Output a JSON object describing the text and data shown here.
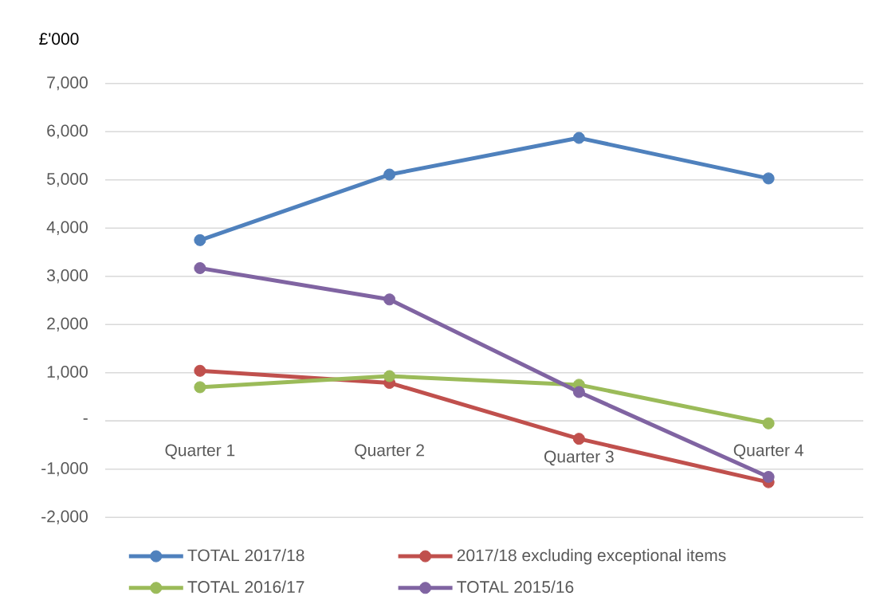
{
  "chart_data": {
    "type": "line",
    "ylabel": "£'000",
    "categories": [
      "Quarter 1",
      "Quarter 2",
      "Quarter 3",
      "Quarter 4"
    ],
    "series": [
      {
        "name": "TOTAL 2017/18",
        "color": "#4f81bd",
        "values": [
          3750,
          5110,
          5870,
          5030
        ]
      },
      {
        "name": "2017/18 excluding exceptional items",
        "color": "#c0504d",
        "values": [
          1040,
          790,
          -370,
          -1270
        ]
      },
      {
        "name": "TOTAL 2016/17",
        "color": "#9bbb59",
        "values": [
          700,
          930,
          750,
          -50
        ]
      },
      {
        "name": "TOTAL 2015/16",
        "color": "#8064a2",
        "values": [
          3170,
          2520,
          600,
          -1160
        ]
      }
    ],
    "ylim": [
      -2000,
      7000
    ],
    "yticks": [
      {
        "value": -2000,
        "label": "-2,000"
      },
      {
        "value": -1000,
        "label": "-1,000"
      },
      {
        "value": 0,
        "label": "-"
      },
      {
        "value": 1000,
        "label": "1,000"
      },
      {
        "value": 2000,
        "label": "2,000"
      },
      {
        "value": 3000,
        "label": "3,000"
      },
      {
        "value": 4000,
        "label": "4,000"
      },
      {
        "value": 5000,
        "label": "5,000"
      },
      {
        "value": 6000,
        "label": "6,000"
      },
      {
        "value": 7000,
        "label": "7,000"
      }
    ],
    "grid": "y",
    "legend": "bottom",
    "marker": "circle",
    "line_style": "solid"
  }
}
